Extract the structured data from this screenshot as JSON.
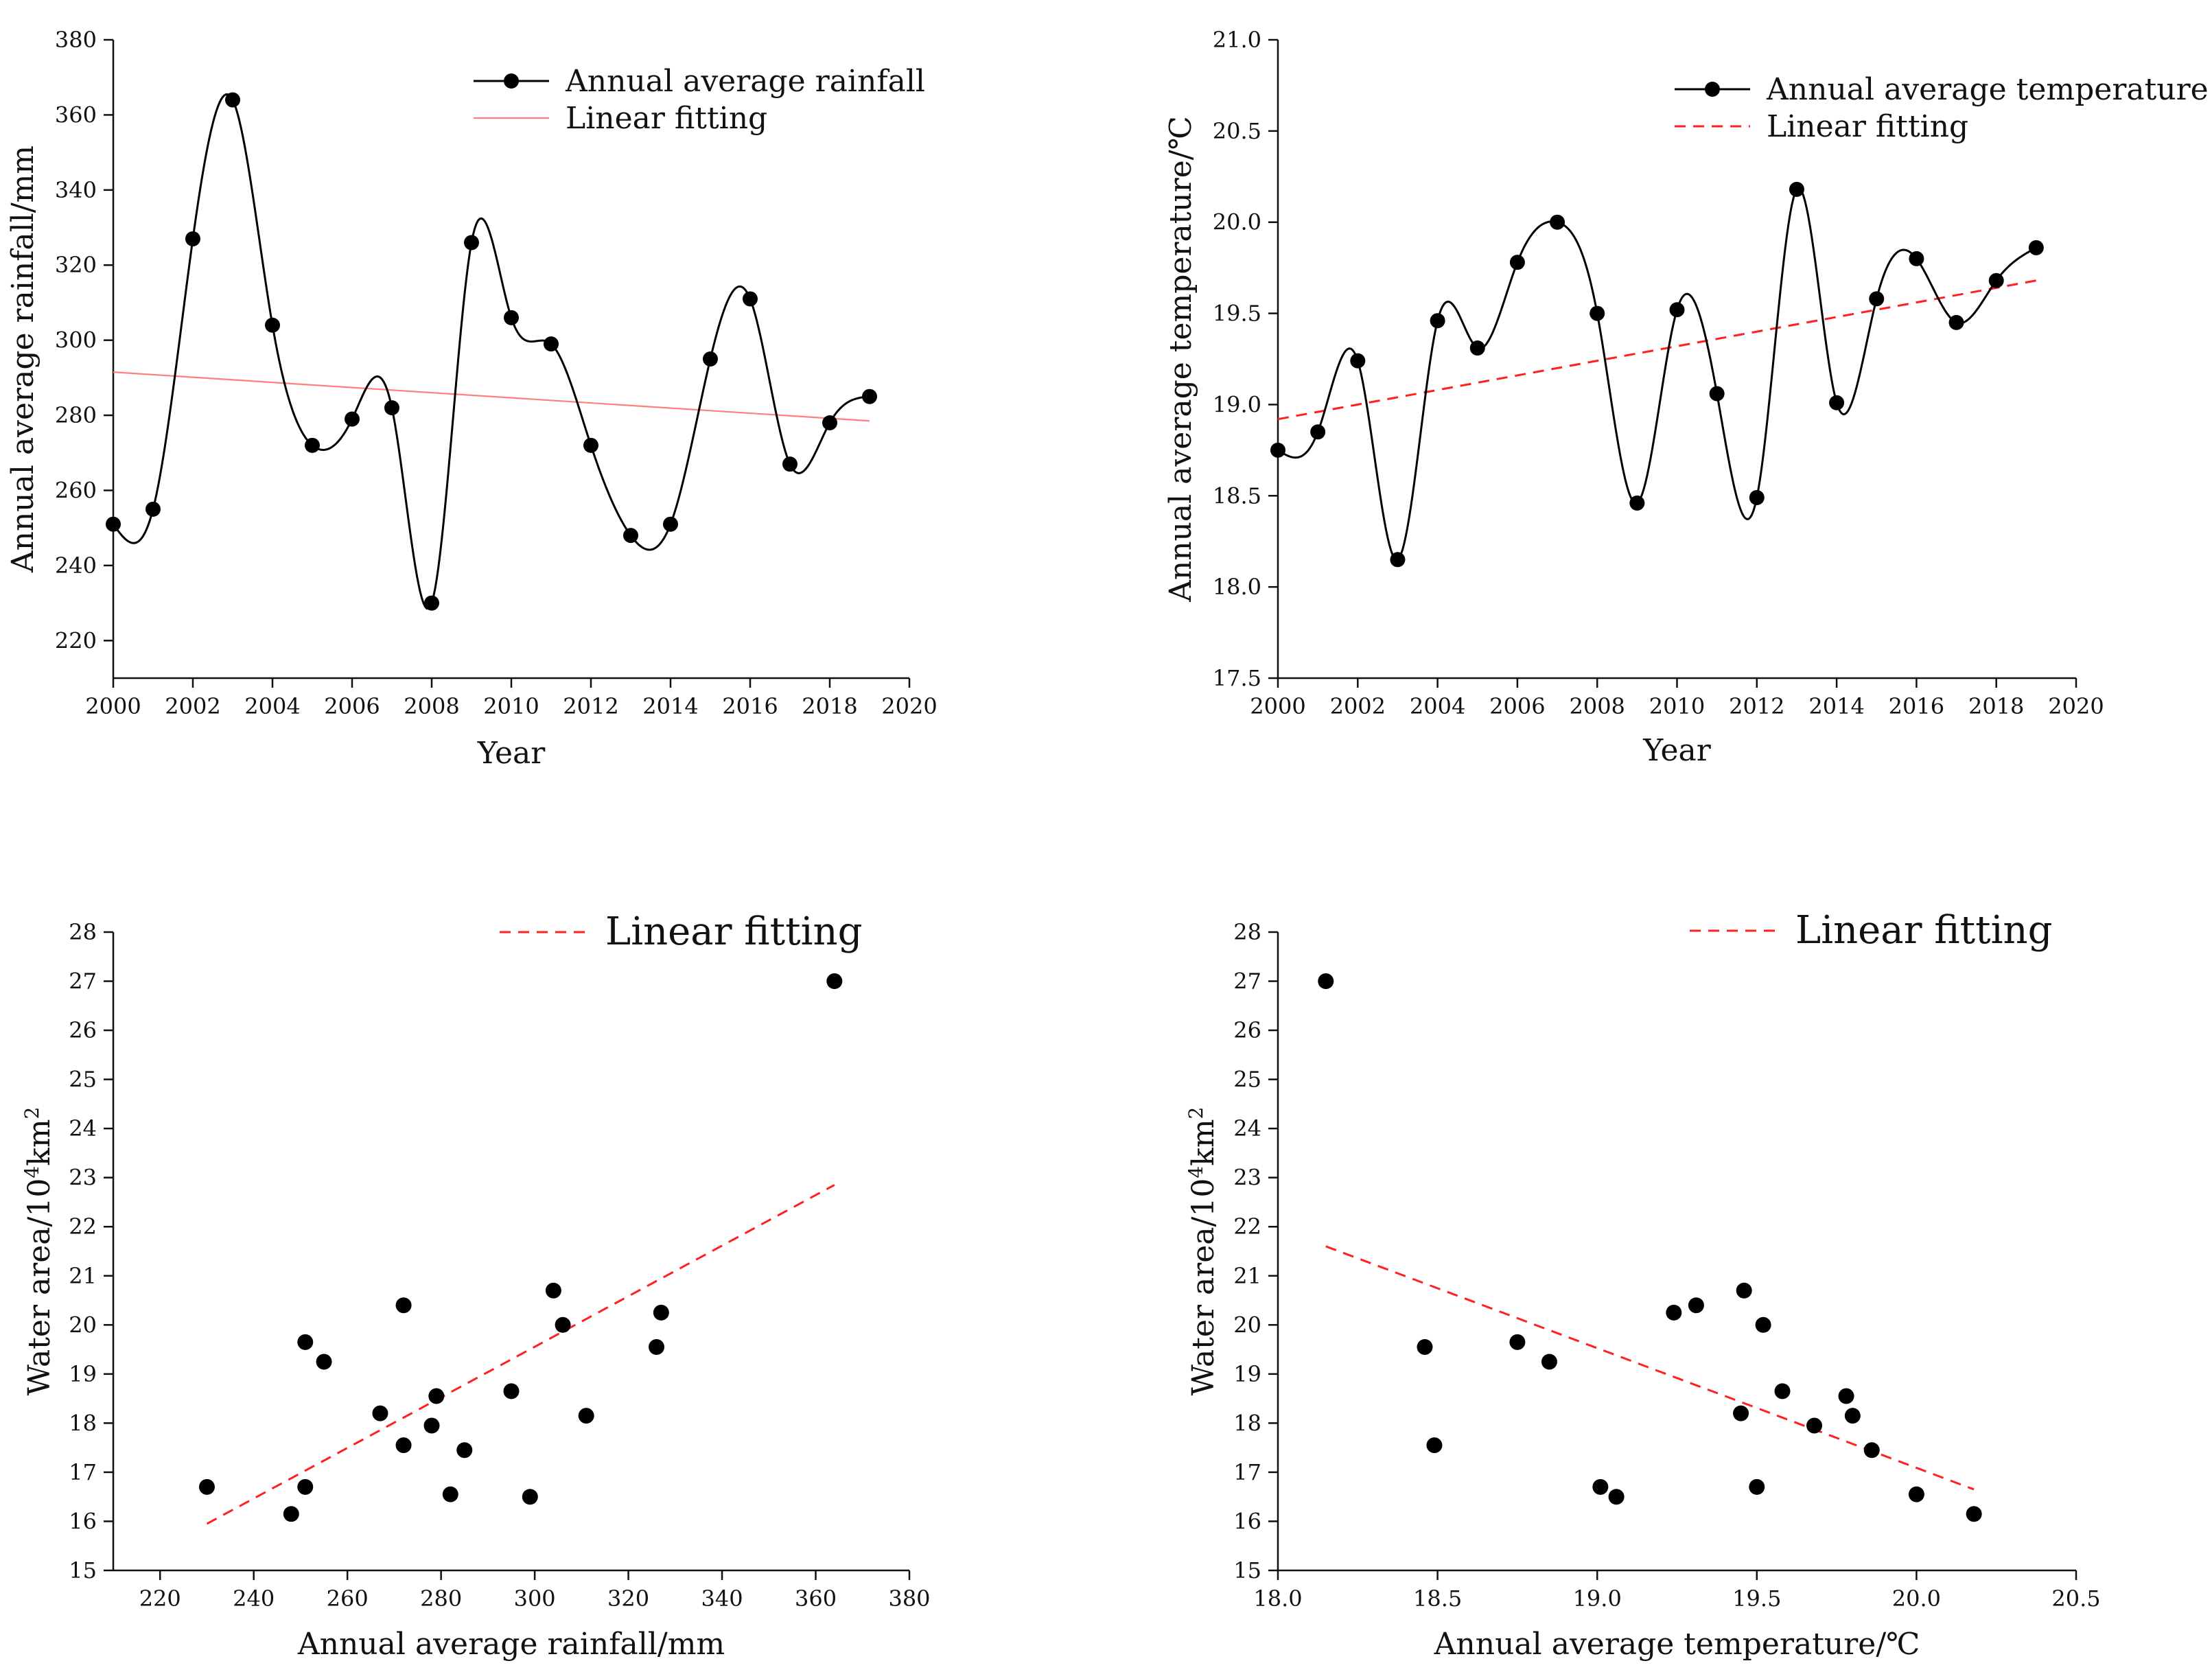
{
  "chart_data": [
    {
      "id": "rainfall",
      "type": "line",
      "xlabel": "Year",
      "ylabel": "Annual average rainfall/mm",
      "xlim": [
        2000,
        2020
      ],
      "ylim": [
        210,
        380
      ],
      "xticks": [
        "2000",
        "2002",
        "2004",
        "2006",
        "2008",
        "2010",
        "2012",
        "2014",
        "2016",
        "2018",
        "2020"
      ],
      "yticks": [
        "220",
        "240",
        "260",
        "280",
        "300",
        "320",
        "340",
        "360",
        "380"
      ],
      "legend": [
        "Annual average rainfall",
        "Linear fitting"
      ],
      "legend_position": "top-right",
      "colors": {
        "series": "#000000",
        "fit": "#ff7f7f"
      },
      "series": [
        {
          "name": "Annual average rainfall",
          "x": [
            2000,
            2001,
            2002,
            2003,
            2004,
            2005,
            2006,
            2007,
            2008,
            2009,
            2010,
            2011,
            2012,
            2013,
            2014,
            2015,
            2016,
            2017,
            2018,
            2019
          ],
          "y": [
            251,
            255,
            327,
            364,
            304,
            272,
            279,
            282,
            230,
            326,
            306,
            299,
            272,
            248,
            251,
            295,
            311,
            267,
            278,
            285
          ]
        }
      ],
      "fit": {
        "x": [
          2000,
          2019
        ],
        "y": [
          291.5,
          278.5
        ],
        "style": "solid"
      }
    },
    {
      "id": "temperature",
      "type": "line",
      "xlabel": "Year",
      "ylabel": "Annual average temperature/℃",
      "xlim": [
        2000,
        2020
      ],
      "ylim": [
        17.5,
        21.0
      ],
      "xticks": [
        "2000",
        "2002",
        "2004",
        "2006",
        "2008",
        "2010",
        "2012",
        "2014",
        "2016",
        "2018",
        "2020"
      ],
      "yticks": [
        "17.5",
        "18.0",
        "18.5",
        "19.0",
        "19.5",
        "20.0",
        "20.5",
        "21.0"
      ],
      "legend": [
        "Annual average temperature",
        "Linear fitting"
      ],
      "legend_position": "top-right",
      "colors": {
        "series": "#000000",
        "fit": "#ff2020"
      },
      "series": [
        {
          "name": "Annual average temperature",
          "x": [
            2000,
            2001,
            2002,
            2003,
            2004,
            2005,
            2006,
            2007,
            2008,
            2009,
            2010,
            2011,
            2012,
            2013,
            2014,
            2015,
            2016,
            2017,
            2018,
            2019
          ],
          "y": [
            18.75,
            18.85,
            19.24,
            18.15,
            19.46,
            19.31,
            19.78,
            20.0,
            19.5,
            18.46,
            19.52,
            19.06,
            18.49,
            20.18,
            19.01,
            19.58,
            19.8,
            19.45,
            19.68,
            19.86
          ]
        }
      ],
      "fit": {
        "x": [
          2000,
          2019
        ],
        "y": [
          18.92,
          19.68
        ],
        "style": "dashed"
      }
    },
    {
      "id": "area-vs-rainfall",
      "type": "scatter",
      "xlabel": "Annual average rainfall/mm",
      "ylabel_parts": [
        "Water area/10",
        "4",
        "km",
        "2"
      ],
      "xlim": [
        210,
        380
      ],
      "ylim": [
        15,
        28
      ],
      "xticks": [
        "220",
        "240",
        "260",
        "280",
        "300",
        "320",
        "340",
        "360",
        "380"
      ],
      "yticks": [
        "15",
        "16",
        "17",
        "18",
        "19",
        "20",
        "21",
        "22",
        "23",
        "24",
        "25",
        "26",
        "27",
        "28"
      ],
      "legend": [
        "Linear fitting"
      ],
      "legend_position": "top-right",
      "colors": {
        "points": "#000000",
        "fit": "#ff2020"
      },
      "points": {
        "x": [
          230,
          248,
          251,
          251,
          255,
          267,
          272,
          272,
          278,
          279,
          282,
          285,
          295,
          299,
          304,
          306,
          311,
          326,
          327,
          364
        ],
        "y": [
          16.7,
          16.15,
          16.7,
          19.65,
          19.25,
          18.2,
          20.4,
          17.55,
          17.95,
          18.55,
          16.55,
          17.45,
          18.65,
          16.5,
          20.7,
          20.0,
          18.15,
          19.55,
          20.25,
          27.0
        ]
      },
      "fit": {
        "x": [
          230,
          364
        ],
        "y": [
          15.95,
          22.85
        ],
        "style": "dashed"
      }
    },
    {
      "id": "area-vs-temperature",
      "type": "scatter",
      "xlabel": "Annual average temperature/℃",
      "ylabel_parts": [
        "Water area/10",
        "4",
        "km",
        "2"
      ],
      "xlim": [
        18.0,
        20.5
      ],
      "ylim": [
        15,
        28
      ],
      "xticks": [
        "18.0",
        "18.5",
        "19.0",
        "19.5",
        "20.0",
        "20.5"
      ],
      "yticks": [
        "15",
        "16",
        "17",
        "18",
        "19",
        "20",
        "21",
        "22",
        "23",
        "24",
        "25",
        "26",
        "27",
        "28"
      ],
      "legend": [
        "Linear fitting"
      ],
      "legend_position": "top-right",
      "colors": {
        "points": "#000000",
        "fit": "#ff2020"
      },
      "points": {
        "x": [
          18.15,
          18.46,
          18.49,
          18.75,
          18.85,
          19.01,
          19.06,
          19.24,
          19.31,
          19.45,
          19.46,
          19.5,
          19.52,
          19.58,
          19.68,
          19.78,
          19.8,
          19.86,
          20.0,
          20.18
        ],
        "y": [
          27.0,
          19.55,
          17.55,
          19.65,
          19.25,
          16.7,
          16.5,
          20.25,
          20.4,
          18.2,
          20.7,
          16.7,
          20.0,
          18.65,
          17.95,
          18.55,
          18.15,
          17.45,
          16.55,
          16.15
        ]
      },
      "fit": {
        "x": [
          18.15,
          20.18
        ],
        "y": [
          21.6,
          16.65
        ],
        "style": "dashed"
      }
    }
  ]
}
